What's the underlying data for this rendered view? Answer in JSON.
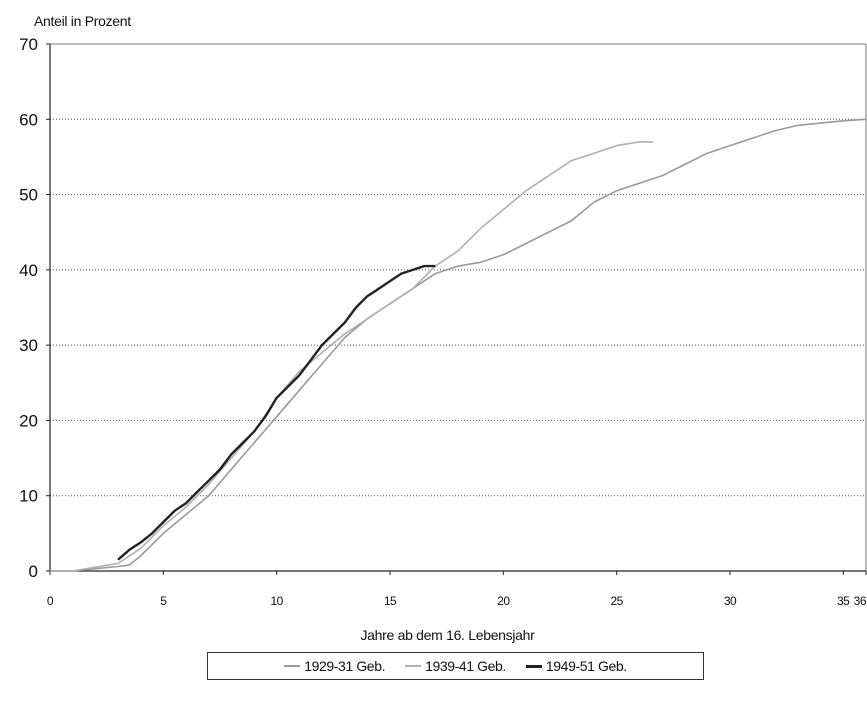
{
  "chart_data": {
    "type": "line",
    "ylabel": "Anteil in Prozent",
    "xlabel": "Jahre ab dem 16. Lebensjahr",
    "xlim": [
      0,
      36
    ],
    "ylim": [
      0,
      70
    ],
    "x_ticks": [
      0,
      5,
      10,
      15,
      20,
      25,
      30,
      35,
      36
    ],
    "x_tick_labels": [
      "0",
      "5",
      "10",
      "15",
      "20",
      "25",
      "30",
      "35",
      "36"
    ],
    "y_ticks": [
      0,
      10,
      20,
      30,
      40,
      50,
      60,
      70
    ],
    "y_tick_labels": [
      "0",
      "10",
      "20",
      "30",
      "40",
      "50",
      "60",
      "70"
    ],
    "grid": "horizontal dotted",
    "legend_position": "bottom",
    "series": [
      {
        "name": "1929-31 Geb.",
        "color": "#9a9a9a",
        "x": [
          0,
          1,
          2,
          3,
          3.5,
          4,
          5,
          6,
          7,
          8,
          9,
          10,
          11,
          12,
          13,
          14,
          15,
          16,
          17,
          18,
          19,
          20,
          21,
          22,
          23,
          24,
          25,
          26,
          27,
          28,
          29,
          30,
          31,
          32,
          33,
          34,
          35,
          36
        ],
        "y": [
          0,
          0,
          0.3,
          0.6,
          0.8,
          2,
          5,
          7.5,
          10,
          13.5,
          17,
          20.5,
          24,
          27.5,
          31,
          33.5,
          35.5,
          37.5,
          39.5,
          40.5,
          41,
          42,
          43.5,
          45,
          46.5,
          49,
          50.5,
          51.5,
          52.5,
          54,
          55.5,
          56.5,
          57.5,
          58.5,
          59.2,
          59.5,
          59.8,
          60
        ]
      },
      {
        "name": "1939-41 Geb.",
        "color": "#b0b0b0",
        "x": [
          0,
          1,
          2,
          3,
          4,
          5,
          6,
          7,
          8,
          9,
          10,
          11,
          12,
          13,
          14,
          15,
          16,
          17,
          18,
          19,
          20,
          21,
          22,
          23,
          24,
          25,
          26,
          26.6
        ],
        "y": [
          0,
          0,
          0.5,
          1,
          3,
          6,
          8.5,
          11.5,
          15,
          18.5,
          23,
          26.5,
          29,
          31.5,
          33.5,
          35.5,
          37.5,
          40.5,
          42.5,
          45.5,
          48,
          50.5,
          52.5,
          54.5,
          55.5,
          56.5,
          57,
          57
        ]
      },
      {
        "name": "1949-51 Geb.",
        "color": "#222222",
        "x": [
          3,
          3.5,
          4,
          4.5,
          5,
          5.5,
          6,
          6.5,
          7,
          7.5,
          8,
          8.5,
          9,
          9.5,
          10,
          10.5,
          11,
          11.5,
          12,
          12.5,
          13,
          13.5,
          14,
          14.5,
          15,
          15.5,
          16,
          16.5,
          17
        ],
        "y": [
          1.5,
          2.8,
          3.8,
          5,
          6.5,
          8,
          9,
          10.5,
          12,
          13.5,
          15.5,
          17,
          18.5,
          20.5,
          23,
          24.5,
          26,
          28,
          30,
          31.5,
          33,
          35,
          36.5,
          37.5,
          38.5,
          39.5,
          40,
          40.5,
          40.5
        ]
      }
    ]
  }
}
